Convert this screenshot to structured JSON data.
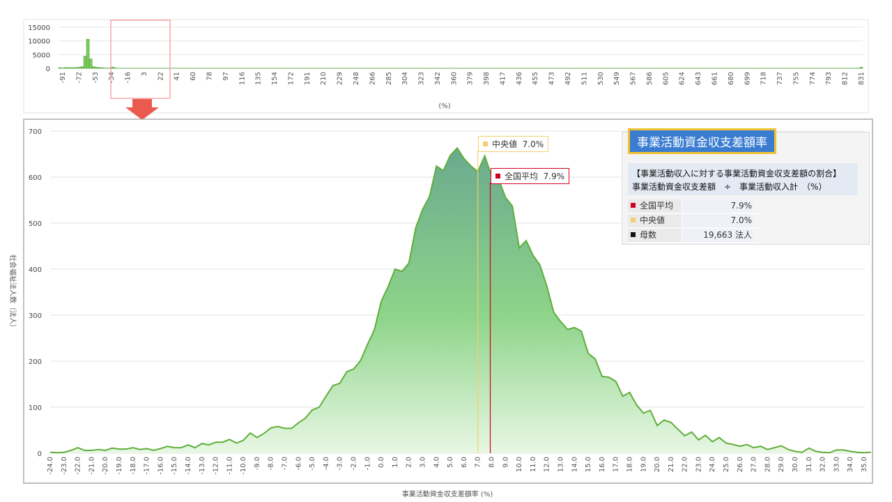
{
  "colors": {
    "mean": "#d0021b",
    "median": "#f5cf6e",
    "area_top": "#6aaa8e",
    "area_bottom": "#e8f7e4",
    "line": "#5fae3a",
    "bar": "#7dcd5c"
  },
  "overview": {
    "xlabel": "(%)",
    "ylim": [
      0,
      15000
    ],
    "y_ticks": [
      "15000",
      "10000",
      "5000",
      "0"
    ],
    "x_ticks": [
      "-91",
      "-72",
      "-53",
      "-34",
      "-16",
      "3",
      "22",
      "41",
      "60",
      "78",
      "97",
      "116",
      "135",
      "154",
      "172",
      "191",
      "210",
      "229",
      "248",
      "266",
      "285",
      "304",
      "323",
      "342",
      "360",
      "379",
      "398",
      "417",
      "436",
      "455",
      "473",
      "492",
      "511",
      "530",
      "549",
      "567",
      "586",
      "605",
      "624",
      "643",
      "661",
      "680",
      "699",
      "718",
      "737",
      "755",
      "774",
      "793",
      "812",
      "831"
    ],
    "bars": [
      250,
      100,
      300,
      250,
      250,
      250,
      300,
      400,
      600,
      4400,
      10600,
      3400,
      600,
      400,
      300,
      250,
      100,
      100,
      100,
      450,
      100,
      50,
      50,
      50,
      50,
      50,
      50,
      50,
      50,
      50,
      50,
      50,
      50,
      50,
      50,
      50,
      50,
      50,
      50,
      50,
      50,
      50,
      50,
      50,
      50,
      50,
      50,
      50,
      50,
      50,
      50,
      50,
      50,
      50,
      50,
      50,
      50,
      50,
      50,
      50,
      50,
      50,
      50,
      50,
      50,
      50,
      50,
      50,
      50,
      50,
      50,
      50,
      50,
      50,
      50,
      50,
      50,
      50,
      50,
      50,
      50,
      50,
      50,
      50,
      50,
      50,
      50,
      50,
      50,
      50,
      50,
      50,
      50,
      50,
      50,
      50,
      50,
      50,
      50,
      50,
      50,
      50,
      50,
      50,
      50,
      50,
      50,
      50,
      50,
      50,
      50,
      50,
      50,
      50,
      50,
      50,
      50,
      50,
      50,
      50,
      50,
      50,
      50,
      50,
      50,
      50,
      50,
      50,
      50,
      50,
      50,
      50,
      50,
      50,
      50,
      50,
      50,
      50,
      50,
      50,
      50,
      50,
      50,
      50,
      50,
      50,
      50,
      50,
      50,
      50,
      50,
      50,
      50,
      50,
      50,
      50,
      50,
      50,
      50,
      50,
      50,
      50,
      50,
      50,
      50,
      50,
      50,
      50,
      50,
      50,
      50,
      50,
      50,
      50,
      50,
      50,
      50,
      50,
      50,
      50,
      50,
      50,
      50,
      50,
      50,
      50,
      50,
      50,
      50,
      50,
      50,
      50,
      50,
      50,
      50,
      50,
      50,
      50,
      50,
      50,
      50,
      50,
      50,
      50,
      50,
      50,
      50,
      50,
      50,
      50,
      50,
      50,
      50,
      50,
      50,
      50,
      50,
      50,
      50,
      50,
      50,
      50,
      50,
      50,
      50,
      50,
      50,
      50,
      50,
      50,
      50,
      50,
      50,
      50,
      50,
      50,
      50,
      50,
      50,
      50,
      50,
      50,
      50,
      50,
      50,
      50,
      50,
      50,
      50,
      50,
      50,
      50,
      50,
      50,
      50,
      50,
      50,
      50,
      50,
      50,
      50,
      50,
      50,
      50,
      50,
      50,
      50,
      50,
      50,
      50,
      50,
      50,
      50,
      50,
      50,
      50,
      50,
      50,
      50,
      50,
      50,
      50,
      50,
      50,
      50,
      50,
      50,
      400
    ]
  },
  "chart_data": {
    "type": "area",
    "xlabel": "事業活動資金収支差額率 (%)",
    "ylabel": "社会福祉法人数（法人）",
    "xlim": [
      -24.0,
      35.0
    ],
    "ylim": [
      0,
      700
    ],
    "y_ticks": [
      "700",
      "600",
      "500",
      "400",
      "300",
      "200",
      "100",
      "0"
    ],
    "x_ticks": [
      "-24.0",
      "-23.0",
      "-22.0",
      "-21.0",
      "-20.0",
      "-19.0",
      "-18.0",
      "-17.0",
      "-16.0",
      "-15.0",
      "-14.0",
      "-13.0",
      "-12.0",
      "-11.0",
      "-10.0",
      "-9.0",
      "-8.0",
      "-7.0",
      "-6.0",
      "-5.0",
      "-4.0",
      "-3.0",
      "-2.0",
      "-1.0",
      "0.0",
      "1.0",
      "2.0",
      "3.0",
      "4.0",
      "5.0",
      "6.0",
      "7.0",
      "8.0",
      "9.0",
      "10.0",
      "11.0",
      "12.0",
      "13.0",
      "14.0",
      "15.0",
      "16.0",
      "17.0",
      "18.0",
      "19.0",
      "20.0",
      "21.0",
      "22.0",
      "23.0",
      "24.0",
      "25.0",
      "26.0",
      "27.0",
      "28.0",
      "29.0",
      "30.0",
      "31.0",
      "32.0",
      "33.0",
      "34.0",
      "35.0"
    ],
    "x_step": 0.5,
    "values": [
      2,
      1,
      2,
      6,
      12,
      6,
      6,
      8,
      6,
      11,
      9,
      9,
      12,
      8,
      10,
      6,
      10,
      15,
      12,
      12,
      18,
      12,
      21,
      18,
      24,
      24,
      30,
      22,
      28,
      44,
      34,
      43,
      55,
      58,
      54,
      54,
      66,
      76,
      94,
      100,
      124,
      147,
      152,
      177,
      183,
      201,
      236,
      268,
      330,
      362,
      400,
      395,
      413,
      490,
      530,
      558,
      624,
      614,
      647,
      663,
      640,
      624,
      612,
      646,
      602,
      596,
      556,
      537,
      446,
      462,
      430,
      409,
      363,
      306,
      286,
      269,
      273,
      265,
      217,
      205,
      167,
      165,
      156,
      124,
      132,
      105,
      87,
      93,
      60,
      72,
      67,
      52,
      38,
      46,
      29,
      39,
      25,
      34,
      22,
      19,
      15,
      19,
      12,
      15,
      8,
      12,
      16,
      8,
      4,
      2,
      11,
      4,
      2,
      1,
      7,
      7,
      4,
      2,
      1,
      2
    ]
  },
  "markers": {
    "median": {
      "label": "中央値",
      "value_text": "7.0%",
      "x": 7.0
    },
    "mean": {
      "label": "全国平均",
      "value_text": "7.9%",
      "x": 7.9
    }
  },
  "info_panel": {
    "title": "事業活動資金収支差額率",
    "formula_line1": "【事業活動収入に対する事業活動資金収支差額の割合】",
    "formula_line2": "事業活動資金収支差額　÷　事業活動収入計　（%）",
    "rows": [
      {
        "label": "全国平均",
        "value": "7.9%",
        "color": "#d0021b"
      },
      {
        "label": "中央値",
        "value": "7.0%",
        "color": "#f5cf6e"
      },
      {
        "label": "母数",
        "value": "19,663  法人",
        "color": "#111111"
      }
    ]
  }
}
